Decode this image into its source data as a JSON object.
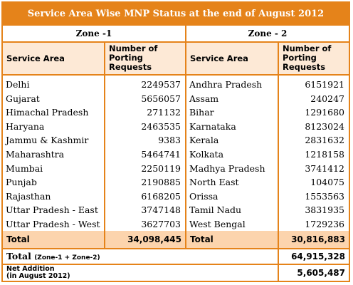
{
  "title": "Service Area Wise MNP Status at the end of August 2012",
  "zones": [
    {
      "label": "Zone -1",
      "col_service": "Service Area",
      "col_requests": "Number of Porting Requests",
      "rows": [
        {
          "area": "Delhi",
          "value": "2249537"
        },
        {
          "area": "Gujarat",
          "value": "5656057"
        },
        {
          "area": "Himachal Pradesh",
          "value": "271132"
        },
        {
          "area": "Haryana",
          "value": "2463535"
        },
        {
          "area": "Jammu & Kashmir",
          "value": "9383"
        },
        {
          "area": "Maharashtra",
          "value": "5464741"
        },
        {
          "area": "Mumbai",
          "value": "2250119"
        },
        {
          "area": "Punjab",
          "value": "2190885"
        },
        {
          "area": "Rajasthan",
          "value": "6168205"
        },
        {
          "area": "Uttar Pradesh - East",
          "value": "3747148"
        },
        {
          "area": "Uttar Pradesh - West",
          "value": "3627703"
        }
      ],
      "total_label": "Total",
      "total_value": "34,098,445"
    },
    {
      "label": "Zone - 2",
      "col_service": "Service Area",
      "col_requests": "Number of Porting Requests",
      "rows": [
        {
          "area": "Andhra Pradesh",
          "value": "6151921"
        },
        {
          "area": "Assam",
          "value": "240247"
        },
        {
          "area": "Bihar",
          "value": "1291680"
        },
        {
          "area": "Karnataka",
          "value": "8123024"
        },
        {
          "area": "Kerala",
          "value": "2831632"
        },
        {
          "area": "Kolkata",
          "value": "1218158"
        },
        {
          "area": "Madhya Pradesh",
          "value": "3741412"
        },
        {
          "area": "North East",
          "value": "104075"
        },
        {
          "area": "Orissa",
          "value": "1553563"
        },
        {
          "area": "Tamil Nadu",
          "value": "3831935"
        },
        {
          "area": "West Bengal",
          "value": "1729236"
        }
      ],
      "total_label": "Total",
      "total_value": "30,816,883"
    }
  ],
  "grand_total": {
    "label": "Total",
    "sublabel": "(Zone-1 + Zone-2)",
    "value": "64,915,328"
  },
  "net_addition": {
    "label_line1": "Net Addition",
    "label_line2": "(in August 2012)",
    "value": "5,605,487"
  },
  "colors": {
    "accent": "#e5831a",
    "header_bg": "#fde9d6",
    "total_bg": "#fcd4ad"
  }
}
